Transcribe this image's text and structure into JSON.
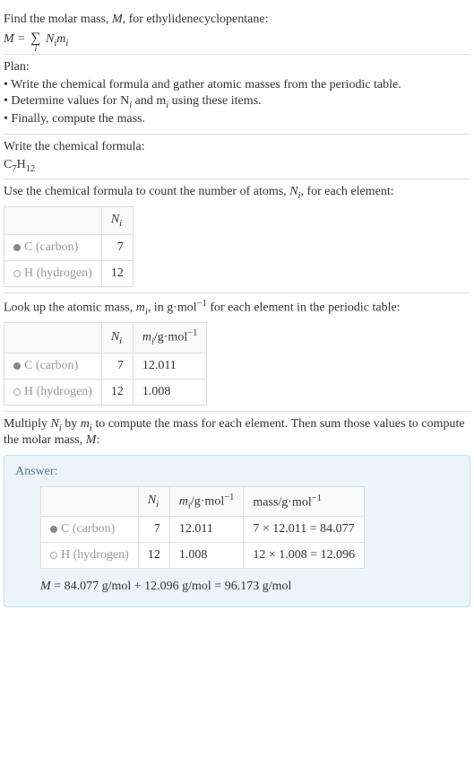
{
  "intro": {
    "prompt_prefix": "Find the molar mass, ",
    "prompt_var": "M",
    "prompt_suffix": ", for ethylidenecyclopentane:",
    "formula_lhs": "M",
    "formula_eq": " = ",
    "formula_sum_index": "i",
    "formula_rhs_N": "N",
    "formula_rhs_Ni": "i",
    "formula_rhs_m": "m",
    "formula_rhs_mi": "i"
  },
  "plan": {
    "title": "Plan:",
    "items": [
      "• Write the chemical formula and gather atomic masses from the periodic table.",
      "• Determine values for N",
      " and m",
      " using these items.",
      "• Finally, compute the mass."
    ],
    "sub_i": "i"
  },
  "chemical": {
    "title": "Write the chemical formula:",
    "formula_c": "C",
    "formula_c_sub": "7",
    "formula_h": "H",
    "formula_h_sub": "12"
  },
  "count": {
    "title_prefix": "Use the chemical formula to count the number of atoms, ",
    "title_var": "N",
    "title_sub": "i",
    "title_suffix": ", for each element:",
    "header_N": "N",
    "header_Ni": "i",
    "rows": [
      {
        "dot": "filled",
        "symbol": "C",
        "name": " (carbon)",
        "n": "7"
      },
      {
        "dot": "hollow",
        "symbol": "H",
        "name": " (hydrogen)",
        "n": "12"
      }
    ]
  },
  "atomic_mass": {
    "title_prefix": "Look up the atomic mass, ",
    "title_var": "m",
    "title_sub": "i",
    "title_mid": ", in g·mol",
    "title_sup": "−1",
    "title_suffix": " for each element in the periodic table:",
    "header_N": "N",
    "header_Ni": "i",
    "header_m": "m",
    "header_mi": "i",
    "header_unit": "/g·mol",
    "header_sup": "−1",
    "rows": [
      {
        "dot": "filled",
        "symbol": "C",
        "name": " (carbon)",
        "n": "7",
        "m": "12.011"
      },
      {
        "dot": "hollow",
        "symbol": "H",
        "name": " (hydrogen)",
        "n": "12",
        "m": "1.008"
      }
    ]
  },
  "compute": {
    "title_prefix": "Multiply ",
    "title_N": "N",
    "title_Ni": "i",
    "title_by": " by ",
    "title_m": "m",
    "title_mi": "i",
    "title_mid": " to compute the mass for each element. Then sum those values to compute the molar mass, ",
    "title_M": "M",
    "title_suffix": ":"
  },
  "answer": {
    "label": "Answer:",
    "header_N": "N",
    "header_Ni": "i",
    "header_m": "m",
    "header_mi": "i",
    "header_unit": "/g·mol",
    "header_sup": "−1",
    "header_mass": "mass/g·mol",
    "header_mass_sup": "−1",
    "rows": [
      {
        "dot": "filled",
        "symbol": "C",
        "name": " (carbon)",
        "n": "7",
        "m": "12.011",
        "mass": "7 × 12.011 = 84.077"
      },
      {
        "dot": "hollow",
        "symbol": "H",
        "name": " (hydrogen)",
        "n": "12",
        "m": "1.008",
        "mass": "12 × 1.008 = 12.096"
      }
    ],
    "final_M": "M",
    "final_eq": " = 84.077 g/mol + 12.096 g/mol = 96.173 g/mol"
  },
  "colors": {
    "dot_filled": "#888888",
    "dot_hollow_border": "#aaaaaa",
    "element_text": "#999999",
    "answer_bg": "#eaf4fa",
    "answer_border": "#c5dfed",
    "answer_label": "#5a7a8c",
    "border": "#dddddd"
  }
}
